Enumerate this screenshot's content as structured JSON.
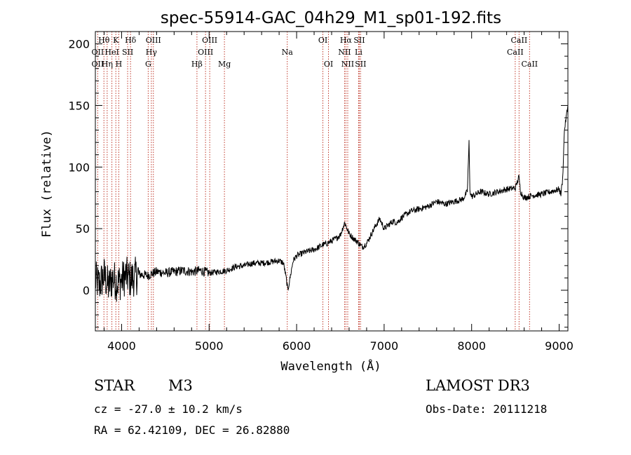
{
  "chart_data": {
    "type": "line",
    "title": "spec-55914-GAC_04h29_M1_sp01-192.fits",
    "xlabel": "Wavelength (Å)",
    "ylabel": "Flux (relative)",
    "xlim": [
      3700,
      9100
    ],
    "ylim": [
      -33,
      210
    ],
    "xticks": [
      4000,
      5000,
      6000,
      7000,
      8000,
      9000
    ],
    "yticks": [
      0,
      50,
      100,
      150,
      200
    ],
    "grid": false,
    "series": [
      {
        "name": "flux",
        "x": [
          3700,
          3750,
          3800,
          3850,
          3900,
          3950,
          4000,
          4050,
          4100,
          4150,
          4200,
          4300,
          4400,
          4500,
          4600,
          4700,
          4800,
          4900,
          5000,
          5100,
          5200,
          5300,
          5400,
          5500,
          5600,
          5700,
          5800,
          5850,
          5880,
          5900,
          5930,
          5960,
          6000,
          6100,
          6200,
          6280,
          6300,
          6350,
          6400,
          6450,
          6500,
          6550,
          6565,
          6600,
          6650,
          6700,
          6750,
          6800,
          6850,
          6900,
          6950,
          7000,
          7050,
          7100,
          7150,
          7200,
          7300,
          7400,
          7500,
          7600,
          7700,
          7800,
          7900,
          7950,
          7970,
          7980,
          7990,
          8000,
          8050,
          8100,
          8200,
          8300,
          8400,
          8500,
          8540,
          8560,
          8600,
          8700,
          8800,
          8900,
          9000,
          9020,
          9040,
          9060,
          9080,
          9100
        ],
        "y": [
          8,
          5,
          12,
          3,
          10,
          6,
          8,
          12,
          9,
          11,
          13,
          12,
          15,
          14,
          15,
          16,
          15,
          16,
          14,
          15,
          16,
          19,
          20,
          22,
          22,
          23,
          24,
          22,
          10,
          0,
          12,
          24,
          28,
          31,
          33,
          36,
          37,
          38,
          40,
          42,
          45,
          55,
          52,
          46,
          42,
          39,
          35,
          38,
          45,
          52,
          58,
          50,
          53,
          56,
          55,
          59,
          64,
          66,
          68,
          72,
          70,
          72,
          74,
          80,
          120,
          82,
          78,
          76,
          78,
          80,
          78,
          80,
          82,
          83,
          92,
          80,
          75,
          77,
          78,
          80,
          82,
          78,
          90,
          130,
          140,
          150
        ]
      }
    ],
    "line_labels": [
      {
        "text": "Hθ",
        "x": 3798,
        "row": 1
      },
      {
        "text": "OII",
        "x": 3727,
        "row": 2
      },
      {
        "text": "OII",
        "x": 3727,
        "row": 3
      },
      {
        "text": "Hη",
        "x": 3835,
        "row": 3
      },
      {
        "text": "HeI",
        "x": 3889,
        "row": 2
      },
      {
        "text": "K",
        "x": 3934,
        "row": 1
      },
      {
        "text": "H",
        "x": 3968,
        "row": 3
      },
      {
        "text": "SII",
        "x": 4069,
        "row": 2
      },
      {
        "text": "Hδ",
        "x": 4102,
        "row": 1
      },
      {
        "text": "OIII",
        "x": 4363,
        "row": 1
      },
      {
        "text": "Hγ",
        "x": 4340,
        "row": 2
      },
      {
        "text": "G",
        "x": 4304,
        "row": 3
      },
      {
        "text": "Hβ",
        "x": 4861,
        "row": 3
      },
      {
        "text": "OIII",
        "x": 5007,
        "row": 1
      },
      {
        "text": "OIII",
        "x": 4959,
        "row": 2
      },
      {
        "text": "Mg",
        "x": 5175,
        "row": 3
      },
      {
        "text": "Na",
        "x": 5893,
        "row": 2
      },
      {
        "text": "OI",
        "x": 6300,
        "row": 1
      },
      {
        "text": "OI",
        "x": 6364,
        "row": 3
      },
      {
        "text": "Hα",
        "x": 6563,
        "row": 1
      },
      {
        "text": "SII",
        "x": 6716,
        "row": 1
      },
      {
        "text": "NII",
        "x": 6548,
        "row": 2
      },
      {
        "text": "Li",
        "x": 6708,
        "row": 2
      },
      {
        "text": "NII",
        "x": 6584,
        "row": 3
      },
      {
        "text": "SII",
        "x": 6731,
        "row": 3
      },
      {
        "text": "CaII",
        "x": 8542,
        "row": 1
      },
      {
        "text": "CaII",
        "x": 8498,
        "row": 2
      },
      {
        "text": "CaII",
        "x": 8662,
        "row": 3
      }
    ],
    "line_markers": [
      3727,
      3798,
      3835,
      3889,
      3934,
      3968,
      4069,
      4102,
      4304,
      4340,
      4363,
      4861,
      4959,
      5007,
      5175,
      5893,
      6300,
      6364,
      6548,
      6563,
      6584,
      6708,
      6716,
      6731,
      8498,
      8542,
      8662
    ]
  },
  "info": {
    "class": "STAR",
    "subclass": "M3",
    "survey": "LAMOST DR3",
    "cz": "cz = -27.0 ± 10.2 km/s",
    "obs_date": "Obs-Date: 20111218",
    "coords": "RA =  62.42109, DEC =  26.82880"
  },
  "colors": {
    "axis": "#000000",
    "spectrum": "#000000",
    "marker": "#c0392b"
  }
}
